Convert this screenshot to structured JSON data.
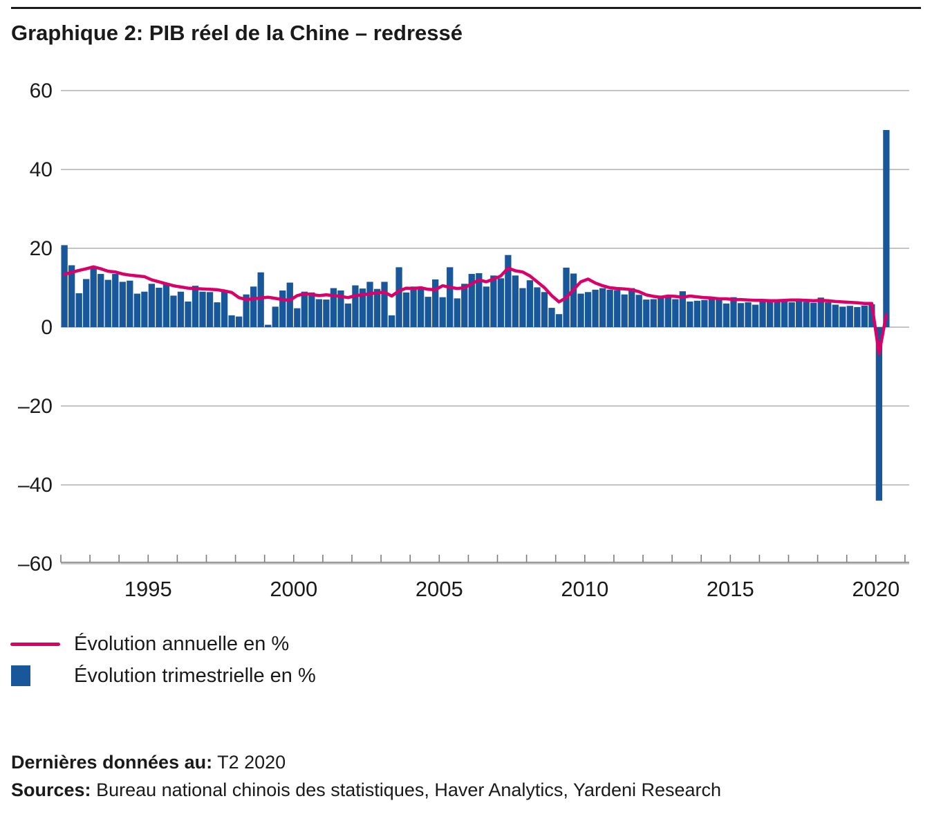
{
  "page": {
    "title": "Graphique 2: PIB réel de la Chine – redressé"
  },
  "chart_data": {
    "type": "bar",
    "title": "Graphique 2: PIB réel de la Chine – redressé",
    "x_start": "T1 1992",
    "x_end": "T2 2020",
    "frequency": "trimestrielle",
    "ylim": [
      -60,
      60
    ],
    "yticks": [
      60,
      40,
      20,
      0,
      -20,
      -40,
      -60
    ],
    "ytick_labels": [
      "60",
      "40",
      "20",
      "0",
      "–20",
      "–40",
      "–60"
    ],
    "grid": "horizontal",
    "legend_position": "bottom-left",
    "xaxis": {
      "label_years": [
        1995,
        2000,
        2005,
        2010,
        2015,
        2020
      ],
      "labels": [
        "1995",
        "2000",
        "2005",
        "2010",
        "2015",
        "2020"
      ],
      "tick_years_from": 1992,
      "tick_years_to": 2021
    },
    "series": [
      {
        "name": "Évolution annuelle en %",
        "type": "line",
        "color": "#db0069",
        "values": [
          13.4,
          13.9,
          14.4,
          14.8,
          15.3,
          14.8,
          14.2,
          14.0,
          13.5,
          13.2,
          13.0,
          12.8,
          12.0,
          11.5,
          11.0,
          10.5,
          10.2,
          9.9,
          9.8,
          9.7,
          9.6,
          9.5,
          9.2,
          8.8,
          7.5,
          7.0,
          7.2,
          7.4,
          7.6,
          7.3,
          7.0,
          6.8,
          8.0,
          8.5,
          8.3,
          8.0,
          8.2,
          8.0,
          7.8,
          7.5,
          8.0,
          8.2,
          8.5,
          8.7,
          8.9,
          7.9,
          9.2,
          9.9,
          9.8,
          10.0,
          9.6,
          9.5,
          10.5,
          10.1,
          9.8,
          10.0,
          11.0,
          12.0,
          11.5,
          12.2,
          13.0,
          15.0,
          14.3,
          14.0,
          13.0,
          11.5,
          10.0,
          8.0,
          6.4,
          7.5,
          9.5,
          11.5,
          12.2,
          11.2,
          10.5,
          10.0,
          9.8,
          9.7,
          9.5,
          9.0,
          8.2,
          7.8,
          7.6,
          7.9,
          7.8,
          7.6,
          7.9,
          7.7,
          7.5,
          7.4,
          7.2,
          7.2,
          7.0,
          7.0,
          6.9,
          6.8,
          6.8,
          6.7,
          6.7,
          6.8,
          6.9,
          6.9,
          6.8,
          6.7,
          6.8,
          6.7,
          6.5,
          6.4,
          6.3,
          6.2,
          6.0,
          6.0,
          -6.8,
          3.2
        ]
      },
      {
        "name": "Évolution trimestrielle en %",
        "type": "bar",
        "color": "#17579a",
        "values": [
          20.8,
          15.7,
          8.6,
          12.2,
          15.2,
          13.5,
          12.0,
          13.5,
          11.5,
          11.8,
          8.5,
          9.0,
          11.0,
          10.0,
          11.2,
          8.0,
          9.0,
          6.5,
          10.5,
          9.0,
          8.9,
          6.3,
          9.4,
          3.0,
          2.7,
          8.3,
          10.3,
          13.9,
          0.6,
          5.2,
          9.3,
          11.3,
          4.8,
          9.0,
          8.8,
          7.1,
          7.0,
          9.9,
          9.3,
          6.0,
          10.6,
          9.8,
          11.5,
          9.7,
          11.5,
          3.0,
          15.2,
          8.8,
          10.3,
          9.7,
          7.7,
          12.1,
          7.6,
          15.2,
          7.3,
          11.0,
          13.5,
          13.7,
          10.3,
          13.1,
          12.4,
          18.3,
          13.1,
          9.9,
          11.9,
          10.1,
          8.9,
          4.9,
          3.3,
          15.1,
          13.6,
          8.5,
          8.9,
          9.5,
          9.9,
          9.5,
          9.4,
          8.3,
          9.9,
          8.2,
          7.0,
          7.1,
          7.5,
          7.7,
          7.1,
          9.1,
          6.5,
          6.7,
          6.9,
          7.1,
          7.0,
          6.0,
          7.6,
          6.1,
          6.3,
          5.7,
          6.9,
          6.7,
          6.5,
          7.1,
          6.3,
          6.6,
          6.4,
          6.2,
          7.5,
          6.3,
          5.7,
          5.2,
          5.4,
          5.1,
          5.5,
          5.8,
          -44.0,
          50.0
        ]
      }
    ]
  },
  "legend": {
    "items": [
      {
        "label": "Évolution annuelle en %",
        "swatch": "line"
      },
      {
        "label": "Évolution trimestrielle en %",
        "swatch": "square"
      }
    ]
  },
  "footer": {
    "last_data_label": "Dernières données au:",
    "last_data_value": "T2 2020",
    "sources_label": "Sources:",
    "sources_value": "Bureau national chinois des statistiques, Haver Analytics, Yardeni Research"
  }
}
